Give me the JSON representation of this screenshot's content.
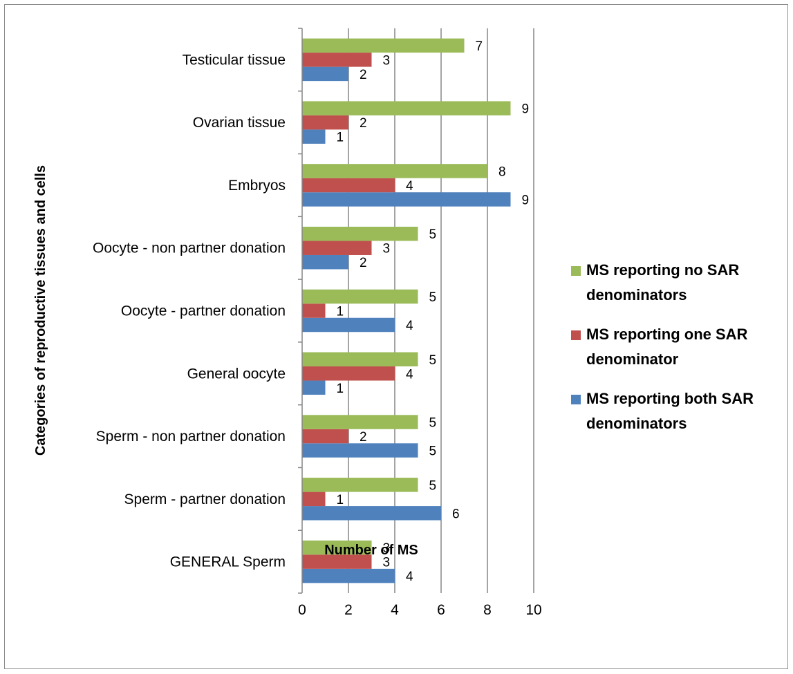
{
  "chart_data": {
    "type": "bar",
    "orientation": "horizontal",
    "title": "",
    "xlabel": "Number of MS",
    "ylabel": "Categories of reproductive tissues and cells",
    "xlim": [
      0,
      10
    ],
    "xticks": [
      0,
      2,
      4,
      6,
      8,
      10
    ],
    "grid": "vertical major gridlines",
    "legend_position": "right",
    "categories": [
      "GENERAL Sperm",
      "Sperm - partner donation",
      "Sperm - non partner donation",
      "General oocyte",
      "Oocyte - partner donation",
      "Oocyte - non partner donation",
      "Embryos",
      "Ovarian tissue",
      "Testicular tissue"
    ],
    "series": [
      {
        "name": "MS reporting both SAR denominators",
        "color": "#4f81bd",
        "values": [
          4,
          6,
          5,
          1,
          4,
          2,
          9,
          1,
          2
        ]
      },
      {
        "name": "MS reporting one SAR denominator",
        "color": "#c0504d",
        "values": [
          3,
          1,
          2,
          4,
          1,
          3,
          4,
          2,
          3
        ]
      },
      {
        "name": "MS reporting no SAR denominators",
        "color": "#9bbb59",
        "values": [
          3,
          5,
          5,
          5,
          5,
          5,
          8,
          9,
          7
        ]
      }
    ],
    "legend": [
      {
        "line1": "MS reporting no SAR",
        "line2": "denominators",
        "color": "#9bbb59"
      },
      {
        "line1": "MS reporting one SAR",
        "line2": "denominator",
        "color": "#c0504d"
      },
      {
        "line1": "MS reporting both SAR",
        "line2": "denominators",
        "color": "#4f81bd"
      }
    ]
  }
}
